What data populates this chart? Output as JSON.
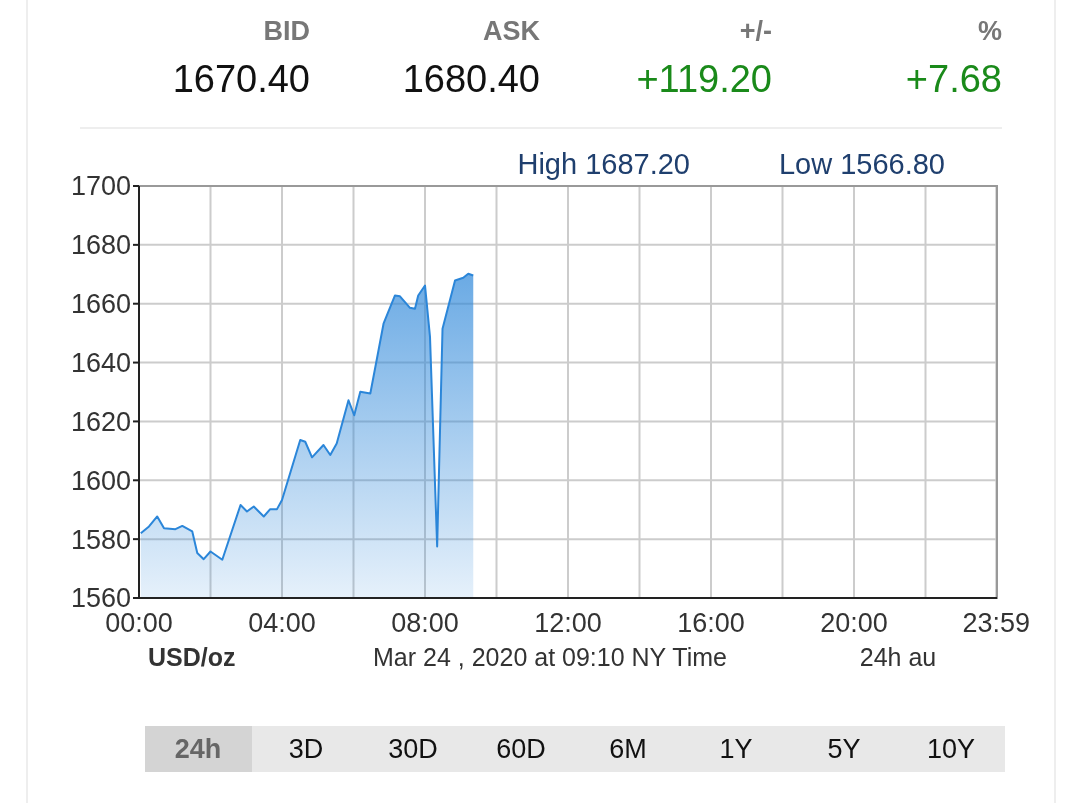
{
  "chart_data": {
    "type": "area",
    "annotations": [
      "BID",
      "ASK",
      "+/-",
      "%",
      "1670.40",
      "1680.40",
      "+119.20",
      "+7.68",
      "High 1687.20",
      "Low 1566.80",
      "USD/oz",
      "Mar 24 , 2020 at 09:10 NY Time",
      "24h au",
      "24h",
      "3D",
      "30D",
      "60D",
      "6M",
      "1Y",
      "5Y",
      "10Y"
    ],
    "series": [
      {
        "color": "#2b86d9",
        "x": [
          0.05,
          0.28,
          0.51,
          0.7,
          1.02,
          1.21,
          1.49,
          1.63,
          1.81,
          2.0,
          2.33,
          2.84,
          3.02,
          3.21,
          3.49,
          3.67,
          3.86,
          4.0,
          4.51,
          4.65,
          4.84,
          5.16,
          5.35,
          5.53,
          5.86,
          6.02,
          6.19,
          6.47,
          6.7,
          6.84,
          7.16,
          7.3,
          7.58,
          7.72,
          7.81,
          8.0,
          8.14,
          8.34,
          8.49,
          8.84,
          9.07,
          9.21,
          9.35
        ],
        "values": [
          1582.0,
          1584.3,
          1587.7,
          1583.7,
          1583.4,
          1584.5,
          1582.6,
          1575.3,
          1573.2,
          1575.8,
          1573.0,
          1591.6,
          1589.4,
          1591.1,
          1587.7,
          1590.2,
          1590.2,
          1593.3,
          1613.7,
          1613.1,
          1607.8,
          1612.0,
          1608.6,
          1612.5,
          1627.2,
          1622.1,
          1630.1,
          1629.5,
          1644.2,
          1653.2,
          1662.8,
          1662.5,
          1658.6,
          1658.3,
          1662.8,
          1666.2,
          1648.7,
          1577.5,
          1651.5,
          1667.9,
          1668.8,
          1670.2,
          1669.6
        ]
      }
    ],
    "xlim": [
      0,
      24
    ],
    "xticks": [
      {
        "value": 0,
        "label": "00:00"
      },
      {
        "value": 2,
        "label": null
      },
      {
        "value": 4,
        "label": "04:00"
      },
      {
        "value": 6,
        "label": null
      },
      {
        "value": 8,
        "label": "08:00"
      },
      {
        "value": 10,
        "label": null
      },
      {
        "value": 12,
        "label": "12:00"
      },
      {
        "value": 14,
        "label": null
      },
      {
        "value": 16,
        "label": "16:00"
      },
      {
        "value": 18,
        "label": null
      },
      {
        "value": 20,
        "label": "20:00"
      },
      {
        "value": 22,
        "label": null
      },
      {
        "value": 23.98,
        "label": "23:59"
      }
    ],
    "ylim": [
      1560,
      1700
    ],
    "yticks": [
      1560,
      1580,
      1600,
      1620,
      1640,
      1660,
      1680,
      1700
    ],
    "grid": true
  }
}
